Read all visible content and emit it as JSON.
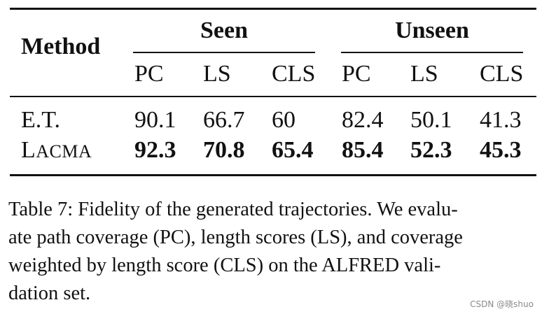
{
  "table": {
    "header": {
      "method": "Method",
      "groups": [
        "Seen",
        "Unseen"
      ],
      "columns": [
        "PC",
        "LS",
        "CLS",
        "PC",
        "LS",
        "CLS"
      ]
    },
    "rows": [
      [
        "E.T.",
        "90.1",
        "66.7",
        "60",
        "82.4",
        "50.1",
        "41.3"
      ],
      [
        "LACMA",
        "92.3",
        "70.8",
        "65.4",
        "85.4",
        "52.3",
        "45.3"
      ]
    ]
  },
  "caption": {
    "lines": [
      "Table 7: Fidelity of the generated trajectories. We evalu-",
      "ate path coverage (PC), length scores (LS), and coverage",
      "weighted by length score (CLS) on the ALFRED vali-",
      "dation set."
    ]
  },
  "watermark": "CSDN @晓shuo"
}
